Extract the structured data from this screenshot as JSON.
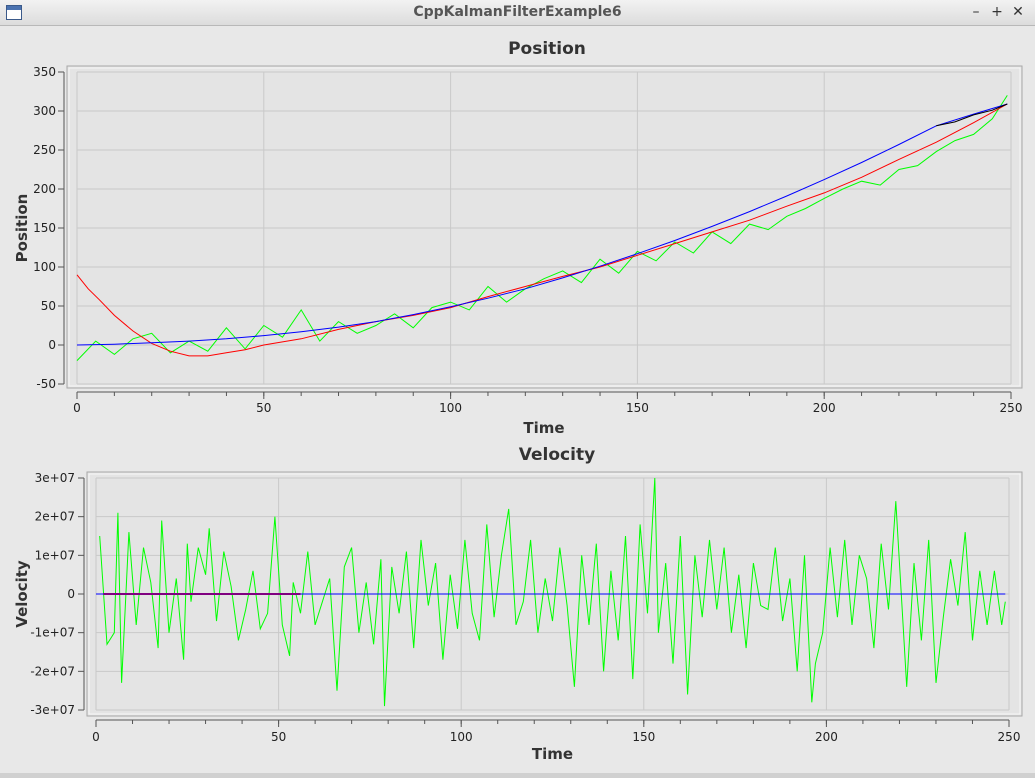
{
  "window": {
    "title": "CppKalmanFilterExample6",
    "minimize_label": "–",
    "maximize_label": "+",
    "close_label": "✕",
    "icon": "window-icon"
  },
  "chart_data": [
    {
      "type": "line",
      "title": "Position",
      "xlabel": "Time",
      "ylabel": "Position",
      "xlim": [
        0,
        250
      ],
      "ylim": [
        -50,
        350
      ],
      "xticks": [
        0,
        50,
        100,
        150,
        200,
        250
      ],
      "yticks": [
        -50,
        0,
        50,
        100,
        150,
        200,
        250,
        300,
        350
      ],
      "xtick_labels": [
        "0",
        "50",
        "100",
        "150",
        "200",
        "250"
      ],
      "ytick_labels": [
        "-50",
        "0",
        "50",
        "100",
        "150",
        "200",
        "250",
        "300",
        "350"
      ],
      "grid": true,
      "series": [
        {
          "color": "#00ff00",
          "x": [
            0,
            5,
            10,
            15,
            20,
            25,
            30,
            35,
            40,
            45,
            50,
            55,
            60,
            65,
            70,
            75,
            80,
            85,
            90,
            95,
            100,
            105,
            110,
            115,
            120,
            125,
            130,
            135,
            140,
            145,
            150,
            155,
            160,
            165,
            170,
            175,
            180,
            185,
            190,
            195,
            200,
            205,
            210,
            215,
            220,
            225,
            230,
            235,
            240,
            245,
            249
          ],
          "y": [
            -20,
            5,
            -12,
            8,
            15,
            -10,
            5,
            -8,
            22,
            -5,
            25,
            10,
            45,
            5,
            30,
            15,
            25,
            40,
            22,
            48,
            55,
            45,
            75,
            55,
            72,
            85,
            95,
            80,
            110,
            92,
            120,
            108,
            132,
            118,
            145,
            130,
            155,
            148,
            165,
            175,
            188,
            200,
            210,
            205,
            225,
            230,
            248,
            262,
            270,
            290,
            320
          ]
        },
        {
          "color": "#ff0000",
          "x": [
            0,
            3,
            6,
            10,
            15,
            20,
            25,
            30,
            35,
            40,
            45,
            50,
            60,
            70,
            80,
            90,
            100,
            110,
            120,
            130,
            140,
            150,
            160,
            170,
            180,
            190,
            200,
            210,
            220,
            230,
            240,
            249
          ],
          "y": [
            90,
            72,
            58,
            38,
            18,
            2,
            -8,
            -14,
            -14,
            -10,
            -6,
            0,
            8,
            20,
            30,
            38,
            48,
            62,
            75,
            88,
            100,
            115,
            130,
            145,
            160,
            178,
            195,
            215,
            238,
            260,
            285,
            309
          ]
        },
        {
          "color": "#0000ff",
          "x": [
            0,
            10,
            20,
            30,
            40,
            50,
            60,
            70,
            80,
            90,
            100,
            110,
            120,
            130,
            140,
            150,
            160,
            170,
            180,
            190,
            200,
            210,
            220,
            230,
            240,
            249
          ],
          "y": [
            0,
            1,
            3,
            5,
            8,
            12,
            17,
            23,
            30,
            39,
            49,
            60,
            72,
            86,
            101,
            117,
            134,
            152,
            171,
            191,
            212,
            234,
            257,
            281,
            296,
            309
          ]
        },
        {
          "color": "#000000",
          "x": [
            230,
            235,
            240,
            245,
            249
          ],
          "y": [
            281,
            286,
            295,
            301,
            309
          ]
        }
      ]
    },
    {
      "type": "line",
      "title": "Velocity",
      "xlabel": "Time",
      "ylabel": "Velocity",
      "xlim": [
        0,
        250
      ],
      "ylim": [
        -30000000,
        30000000
      ],
      "xticks": [
        0,
        50,
        100,
        150,
        200,
        250
      ],
      "yticks": [
        -30000000,
        -20000000,
        -10000000,
        0,
        10000000,
        20000000,
        30000000
      ],
      "xtick_labels": [
        "0",
        "50",
        "100",
        "150",
        "200",
        "250"
      ],
      "ytick_labels": [
        "-3e+07",
        "-2e+07",
        "-1e+07",
        "0",
        "1e+07",
        "2e+07",
        "3e+07"
      ],
      "grid": true,
      "series": [
        {
          "color": "#00ff00",
          "x": [
            1,
            3,
            5,
            6,
            7,
            9,
            11,
            13,
            15,
            17,
            18,
            20,
            22,
            24,
            25,
            26,
            28,
            30,
            31,
            33,
            35,
            37,
            39,
            41,
            43,
            45,
            47,
            49,
            51,
            53,
            54,
            56,
            58,
            60,
            62,
            64,
            66,
            68,
            70,
            72,
            74,
            76,
            78,
            79,
            81,
            83,
            85,
            87,
            89,
            91,
            93,
            95,
            97,
            99,
            101,
            103,
            105,
            107,
            109,
            111,
            113,
            115,
            117,
            119,
            121,
            123,
            125,
            127,
            129,
            131,
            133,
            135,
            137,
            139,
            141,
            143,
            145,
            147,
            149,
            151,
            153,
            154,
            156,
            158,
            160,
            162,
            164,
            166,
            168,
            170,
            172,
            174,
            176,
            178,
            180,
            182,
            184,
            186,
            188,
            190,
            192,
            194,
            196,
            197,
            199,
            201,
            203,
            205,
            207,
            209,
            211,
            213,
            215,
            217,
            219,
            221,
            222,
            224,
            226,
            228,
            230,
            232,
            234,
            236,
            238,
            240,
            242,
            244,
            246,
            248,
            249
          ],
          "y": [
            15000000,
            -13000000,
            -10000000,
            21000000,
            -23000000,
            16000000,
            -8000000,
            12000000,
            3000000,
            -14000000,
            19000000,
            -10000000,
            4000000,
            -17000000,
            13000000,
            -2000000,
            12000000,
            5000000,
            17000000,
            -7000000,
            11000000,
            2000000,
            -12000000,
            -4000000,
            6000000,
            -9000000,
            -5000000,
            20000000,
            -8000000,
            -16000000,
            3000000,
            -5000000,
            11000000,
            -8000000,
            -2000000,
            4000000,
            -25000000,
            7000000,
            12000000,
            -10000000,
            3000000,
            -13000000,
            9000000,
            -29000000,
            7000000,
            -5000000,
            11000000,
            -14000000,
            14000000,
            -3000000,
            8000000,
            -17000000,
            5000000,
            -9000000,
            14000000,
            -5000000,
            -12000000,
            18000000,
            -6000000,
            10000000,
            22000000,
            -8000000,
            -2000000,
            14000000,
            -10000000,
            4000000,
            -7000000,
            12000000,
            -3000000,
            -24000000,
            10000000,
            -8000000,
            13000000,
            -20000000,
            6000000,
            -12000000,
            15000000,
            -22000000,
            18000000,
            -5000000,
            30000000,
            -10000000,
            8000000,
            -18000000,
            15000000,
            -26000000,
            10000000,
            -6000000,
            14000000,
            -4000000,
            12000000,
            -10000000,
            5000000,
            -14000000,
            8000000,
            -3000000,
            -4000000,
            12000000,
            -7000000,
            4000000,
            -20000000,
            10000000,
            -28000000,
            -18000000,
            -10000000,
            12000000,
            -6000000,
            14000000,
            -8000000,
            10000000,
            4000000,
            -14000000,
            13000000,
            -4000000,
            24000000,
            -8000000,
            -24000000,
            8000000,
            -12000000,
            14000000,
            -23000000,
            -6000000,
            9000000,
            -3000000,
            16000000,
            -12000000,
            6000000,
            -8000000,
            6000000,
            -8000000,
            -2000000
          ]
        },
        {
          "color": "#ff0000",
          "x": [
            2,
            10,
            20,
            30,
            40,
            50,
            56
          ],
          "y": [
            0,
            0,
            0,
            0,
            0,
            0,
            0
          ]
        },
        {
          "color": "#0000ff",
          "x": [
            0,
            50,
            100,
            150,
            200,
            249
          ],
          "y": [
            0,
            0,
            0,
            0,
            0,
            0
          ]
        }
      ]
    }
  ]
}
